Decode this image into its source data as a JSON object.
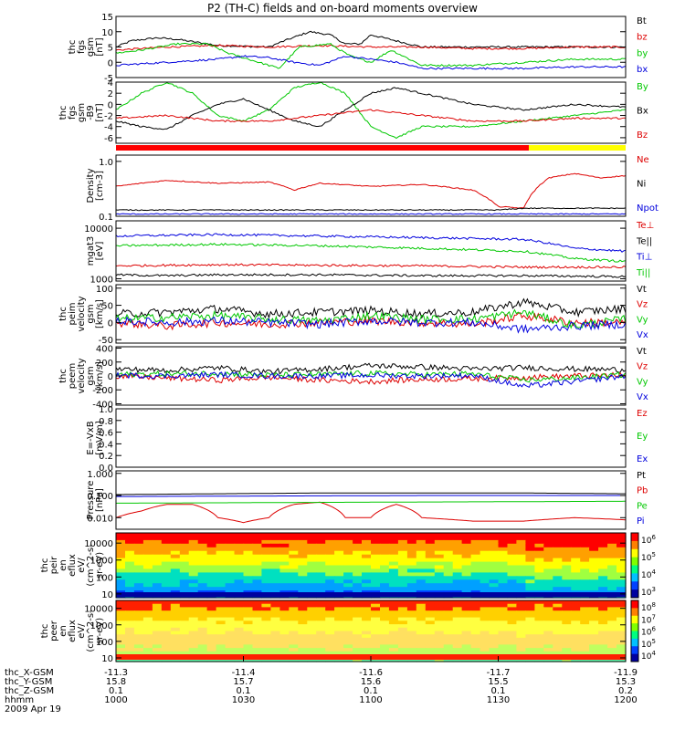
{
  "title": "P2 (TH-C) fields and on-board moments overview",
  "colors": {
    "black": "#000000",
    "red": "#dd0000",
    "green": "#00c800",
    "blue": "#0000dd",
    "yellow": "#ffff00"
  },
  "chart_data": [
    {
      "id": "fgs_gsm",
      "type": "line",
      "ylabel": [
        "thc",
        "fgs",
        "gsm",
        "[nT]"
      ],
      "ylim": [
        -5,
        15
      ],
      "yticks": [
        {
          "v": 15,
          "t": "15"
        },
        {
          "v": 10,
          "t": "10"
        },
        {
          "v": 5,
          "t": "5"
        },
        {
          "v": 0,
          "t": "0"
        },
        {
          "v": -5,
          "t": "-5"
        }
      ],
      "series": [
        {
          "name": "Bt",
          "color": "#000000",
          "x": [
            0,
            0.03,
            0.08,
            0.12,
            0.2,
            0.3,
            0.33,
            0.38,
            0.42,
            0.45,
            0.48,
            0.5,
            0.55,
            0.6,
            0.7,
            0.8,
            0.9,
            1
          ],
          "y": [
            5,
            7,
            8,
            7.5,
            5.5,
            5,
            7,
            10,
            9,
            6,
            6,
            9,
            7,
            5,
            5,
            5,
            5,
            5
          ]
        },
        {
          "name": "bz",
          "color": "#dd0000",
          "x": [
            0,
            0.1,
            0.2,
            0.3,
            0.4,
            0.5,
            0.6,
            0.7,
            0.8,
            0.9,
            1
          ],
          "y": [
            4,
            5,
            5.5,
            5,
            5.5,
            5,
            5,
            4.5,
            4.5,
            5,
            5
          ]
        },
        {
          "name": "by",
          "color": "#00c800",
          "x": [
            0,
            0.05,
            0.12,
            0.18,
            0.22,
            0.28,
            0.32,
            0.36,
            0.42,
            0.46,
            0.5,
            0.54,
            0.6,
            0.7,
            0.8,
            0.9,
            1
          ],
          "y": [
            3,
            4,
            6,
            6,
            3,
            0,
            -2,
            5,
            6,
            2,
            0,
            4,
            -1,
            -1,
            0,
            1,
            1
          ]
        },
        {
          "name": "bx",
          "color": "#0000dd",
          "x": [
            0,
            0.05,
            0.1,
            0.2,
            0.25,
            0.3,
            0.35,
            0.4,
            0.45,
            0.5,
            0.55,
            0.6,
            0.7,
            0.8,
            0.9,
            1
          ],
          "y": [
            -1,
            -0.5,
            0,
            1,
            2,
            1.5,
            0,
            -1,
            2,
            1,
            0,
            -2,
            -2,
            -2,
            -1.5,
            -1.5
          ]
        }
      ]
    },
    {
      "id": "fgs_gse",
      "type": "line",
      "ylabel": [
        "thc",
        "fgs",
        "gsm",
        "-B9",
        "[nT]"
      ],
      "ylim": [
        -7,
        4
      ],
      "yticks": [
        {
          "v": 4,
          "t": "4"
        },
        {
          "v": 2,
          "t": "2"
        },
        {
          "v": 0,
          "t": "0"
        },
        {
          "v": -2,
          "t": "-2"
        },
        {
          "v": -4,
          "t": "-4"
        },
        {
          "v": -6,
          "t": "-6"
        }
      ],
      "series": [
        {
          "name": "By",
          "color": "#00c800",
          "x": [
            0,
            0.05,
            0.1,
            0.15,
            0.2,
            0.25,
            0.3,
            0.35,
            0.4,
            0.45,
            0.5,
            0.55,
            0.6,
            0.7,
            0.8,
            0.9,
            1
          ],
          "y": [
            -1,
            2,
            4,
            2,
            -2,
            -3,
            -1,
            3,
            4,
            2,
            -4,
            -6,
            -4,
            -4,
            -3,
            -2,
            -1
          ]
        },
        {
          "name": "Bx",
          "color": "#000000",
          "x": [
            0,
            0.05,
            0.1,
            0.15,
            0.2,
            0.25,
            0.3,
            0.35,
            0.4,
            0.45,
            0.5,
            0.55,
            0.6,
            0.7,
            0.8,
            0.9,
            1
          ],
          "y": [
            -3,
            -4,
            -4.5,
            -2,
            0,
            1,
            -1,
            -3,
            -4,
            -1,
            2,
            3,
            2,
            0,
            -1,
            0,
            -0.5
          ]
        },
        {
          "name": "Bz",
          "color": "#dd0000",
          "x": [
            0,
            0.1,
            0.2,
            0.3,
            0.4,
            0.5,
            0.6,
            0.7,
            0.8,
            0.9,
            1
          ],
          "y": [
            -2.5,
            -2,
            -3,
            -3,
            -2,
            -1,
            -2,
            -3,
            -3,
            -2.5,
            -2.5
          ]
        }
      ]
    },
    {
      "id": "density",
      "type": "line",
      "log": true,
      "ylabel": [
        "Density",
        "[cm-3]"
      ],
      "ylim": [
        0.1,
        1.3
      ],
      "yticks": [
        {
          "v": 1,
          "t": "1.0"
        },
        {
          "v": 0.1,
          "t": "0.1"
        }
      ],
      "series": [
        {
          "name": "Ne",
          "color": "#dd0000",
          "x": [
            0,
            0.05,
            0.1,
            0.2,
            0.3,
            0.35,
            0.4,
            0.5,
            0.6,
            0.7,
            0.75,
            0.8,
            0.85,
            0.9,
            0.95,
            1
          ],
          "y": [
            0.35,
            0.4,
            0.45,
            0.4,
            0.42,
            0.3,
            0.4,
            0.35,
            0.38,
            0.3,
            0.15,
            0.14,
            0.5,
            0.6,
            0.5,
            0.55
          ]
        },
        {
          "name": "Ni",
          "color": "#000000",
          "x": [
            0,
            0.2,
            0.4,
            0.6,
            0.75,
            0.8,
            1
          ],
          "y": [
            0.13,
            0.13,
            0.13,
            0.13,
            0.13,
            0.14,
            0.14
          ]
        },
        {
          "name": "Npot",
          "color": "#0000dd",
          "x": [
            0,
            0.5,
            1
          ],
          "y": [
            0.11,
            0.11,
            0.11
          ]
        }
      ]
    },
    {
      "id": "temp",
      "type": "line",
      "log": true,
      "ylabel": [
        "mgat3",
        "[eV]"
      ],
      "ylim": [
        900,
        14000
      ],
      "yticks": [
        {
          "v": 10000,
          "t": "10000"
        },
        {
          "v": 1000,
          "t": "1000"
        }
      ],
      "series": [
        {
          "name": "Te⊥",
          "color": "#dd0000",
          "x": [
            0,
            0.2,
            0.4,
            0.6,
            0.8,
            1
          ],
          "y": [
            1800,
            1900,
            1850,
            1800,
            1700,
            1700
          ]
        },
        {
          "name": "Te||",
          "color": "#000000",
          "x": [
            0,
            0.1,
            0.2,
            0.4,
            0.6,
            0.8,
            1
          ],
          "y": [
            1200,
            1150,
            1200,
            1200,
            1150,
            1150,
            1100
          ]
        },
        {
          "name": "Ti⊥",
          "color": "#0000dd",
          "x": [
            0,
            0.2,
            0.4,
            0.6,
            0.8,
            0.9,
            1
          ],
          "y": [
            7000,
            7500,
            7000,
            6500,
            6000,
            4000,
            3500
          ]
        },
        {
          "name": "Ti||",
          "color": "#00c800",
          "x": [
            0,
            0.2,
            0.4,
            0.6,
            0.8,
            0.9,
            1
          ],
          "y": [
            4500,
            4800,
            4500,
            4000,
            3500,
            2500,
            2200
          ]
        }
      ]
    },
    {
      "id": "v_gsm",
      "type": "line",
      "ylabel": [
        "thc",
        "peim",
        "velocity",
        "gsm",
        "[km/s]"
      ],
      "ylim": [
        -60,
        110
      ],
      "yticks": [
        {
          "v": 100,
          "t": "100"
        },
        {
          "v": 50,
          "t": "50"
        },
        {
          "v": 0,
          "t": "0"
        },
        {
          "v": -50,
          "t": "-50"
        }
      ],
      "series": [
        {
          "name": "Vt",
          "color": "#000000",
          "x": [
            0,
            0.1,
            0.2,
            0.3,
            0.4,
            0.5,
            0.6,
            0.7,
            0.8,
            0.9,
            1
          ],
          "y": [
            25,
            30,
            40,
            25,
            30,
            35,
            25,
            30,
            60,
            30,
            40
          ]
        },
        {
          "name": "Vz",
          "color": "#dd0000",
          "x": [
            0,
            0.1,
            0.2,
            0.3,
            0.4,
            0.5,
            0.6,
            0.7,
            0.8,
            0.9,
            1
          ],
          "y": [
            0,
            -10,
            0,
            -5,
            0,
            5,
            0,
            -5,
            20,
            0,
            0
          ]
        },
        {
          "name": "Vy",
          "color": "#00c800",
          "x": [
            0,
            0.1,
            0.2,
            0.3,
            0.4,
            0.5,
            0.6,
            0.7,
            0.8,
            0.9,
            1
          ],
          "y": [
            10,
            15,
            20,
            10,
            5,
            20,
            10,
            10,
            30,
            -10,
            10
          ]
        },
        {
          "name": "Vx",
          "color": "#0000dd",
          "x": [
            0,
            0.1,
            0.2,
            0.3,
            0.4,
            0.5,
            0.6,
            0.7,
            0.8,
            0.9,
            1
          ],
          "y": [
            5,
            0,
            5,
            0,
            -5,
            5,
            0,
            0,
            -20,
            -10,
            -5
          ]
        }
      ]
    },
    {
      "id": "v_gse",
      "type": "line",
      "ylabel": [
        "thc",
        "peem",
        "velocity",
        "gsm",
        "[km/s]"
      ],
      "ylim": [
        -420,
        420
      ],
      "yticks": [
        {
          "v": 400,
          "t": "400"
        },
        {
          "v": 200,
          "t": "200"
        },
        {
          "v": 0,
          "t": "0"
        },
        {
          "v": -200,
          "t": "-200"
        },
        {
          "v": -400,
          "t": "-400"
        }
      ],
      "series": [
        {
          "name": "Vt",
          "color": "#000000",
          "x": [
            0,
            0.1,
            0.2,
            0.3,
            0.4,
            0.5,
            0.6,
            0.7,
            0.8,
            0.9,
            1
          ],
          "y": [
            100,
            80,
            120,
            60,
            100,
            150,
            130,
            100,
            120,
            100,
            90
          ]
        },
        {
          "name": "Vz",
          "color": "#dd0000",
          "x": [
            0,
            0.1,
            0.2,
            0.3,
            0.4,
            0.5,
            0.6,
            0.7,
            0.8,
            0.9,
            1
          ],
          "y": [
            0,
            -30,
            -60,
            -20,
            -60,
            -80,
            -50,
            -40,
            -20,
            0,
            10
          ]
        },
        {
          "name": "Vy",
          "color": "#00c800",
          "x": [
            0,
            0.1,
            0.2,
            0.3,
            0.4,
            0.5,
            0.6,
            0.7,
            0.8,
            0.9,
            1
          ],
          "y": [
            20,
            30,
            40,
            10,
            20,
            40,
            20,
            30,
            -60,
            -30,
            20
          ]
        },
        {
          "name": "Vx",
          "color": "#0000dd",
          "x": [
            0,
            0.1,
            0.2,
            0.3,
            0.4,
            0.5,
            0.6,
            0.7,
            0.8,
            0.9,
            1
          ],
          "y": [
            10,
            0,
            20,
            0,
            0,
            10,
            0,
            10,
            -150,
            -80,
            0
          ]
        }
      ]
    },
    {
      "id": "efield",
      "type": "line",
      "ylabel": [
        "E=-VxB",
        "[mV/m]"
      ],
      "ylim": [
        0,
        1
      ],
      "yticks": [
        {
          "v": 1,
          "t": "1.0"
        },
        {
          "v": 0.8,
          "t": "0.8"
        },
        {
          "v": 0.6,
          "t": "0.6"
        },
        {
          "v": 0.4,
          "t": "0.4"
        },
        {
          "v": 0.2,
          "t": "0.2"
        },
        {
          "v": 0,
          "t": "0.0"
        }
      ],
      "series": [
        {
          "name": "Ez",
          "color": "#dd0000",
          "x": [],
          "y": []
        },
        {
          "name": "Ey",
          "color": "#00c800",
          "x": [],
          "y": []
        },
        {
          "name": "Ex",
          "color": "#0000dd",
          "x": [],
          "y": []
        }
      ]
    },
    {
      "id": "pressure",
      "type": "line",
      "log": true,
      "ylabel": [
        "Pressure",
        "[nPa]"
      ],
      "ylim": [
        0.003,
        1.3
      ],
      "yticks": [
        {
          "v": 1,
          "t": "1.000"
        },
        {
          "v": 0.1,
          "t": "0.100"
        },
        {
          "v": 0.01,
          "t": "0.010"
        }
      ],
      "series": [
        {
          "name": "Pt",
          "color": "#000000",
          "x": [
            0,
            0.2,
            0.4,
            0.6,
            0.8,
            1
          ],
          "y": [
            0.11,
            0.12,
            0.13,
            0.13,
            0.13,
            0.12
          ]
        },
        {
          "name": "Pb",
          "color": "#dd0000",
          "x": [
            0,
            0.05,
            0.1,
            0.15,
            0.2,
            0.25,
            0.3,
            0.35,
            0.4,
            0.45,
            0.5,
            0.55,
            0.6,
            0.7,
            0.8,
            0.9,
            1
          ],
          "y": [
            0.01,
            0.02,
            0.04,
            0.04,
            0.01,
            0.006,
            0.01,
            0.04,
            0.05,
            0.01,
            0.01,
            0.04,
            0.01,
            0.007,
            0.007,
            0.01,
            0.008
          ]
        },
        {
          "name": "Pe",
          "color": "#00c800",
          "x": [
            0,
            0.5,
            1
          ],
          "y": [
            0.045,
            0.05,
            0.055
          ]
        },
        {
          "name": "Pi",
          "color": "#0000dd",
          "x": [
            0,
            0.3,
            0.6,
            1
          ],
          "y": [
            0.09,
            0.095,
            0.1,
            0.1
          ]
        }
      ]
    },
    {
      "id": "peir",
      "type": "heatmap",
      "log": true,
      "ylabel": [
        "thc",
        "peir",
        "en",
        "eflux",
        "eV/",
        "(cm^2-s-",
        "sr-eV)"
      ],
      "ylim": [
        6,
        40000
      ],
      "yticks": [
        {
          "v": 10000,
          "t": "10000"
        },
        {
          "v": 1000,
          "t": "1000"
        },
        {
          "v": 100,
          "t": "100"
        },
        {
          "v": 10,
          "t": "10"
        }
      ],
      "colorbar": [
        {
          "v": "10",
          "e": "6"
        },
        {
          "v": "10",
          "e": "5"
        },
        {
          "v": "10",
          "e": "4"
        },
        {
          "v": "10",
          "e": "3"
        }
      ]
    },
    {
      "id": "peer",
      "type": "heatmap",
      "log": true,
      "ylabel": [
        "thc",
        "peer",
        "en",
        "eflux",
        "eV/",
        "(cm^2-s-",
        "sr-eV)"
      ],
      "ylim": [
        6,
        30000
      ],
      "yticks": [
        {
          "v": 10000,
          "t": "10000"
        },
        {
          "v": 1000,
          "t": "1000"
        },
        {
          "v": 100,
          "t": "100"
        },
        {
          "v": 10,
          "t": "10"
        }
      ],
      "colorbar": [
        {
          "v": "10",
          "e": "8"
        },
        {
          "v": "10",
          "e": "7"
        },
        {
          "v": "10",
          "e": "6"
        },
        {
          "v": "10",
          "e": "5"
        },
        {
          "v": "10",
          "e": "4"
        }
      ]
    }
  ],
  "footer": {
    "rows": [
      {
        "label": "thc_X-GSM",
        "values": [
          "-11.3",
          "-11.4",
          "-11.6",
          "-11.7",
          "-11.9"
        ]
      },
      {
        "label": "thc_Y-GSM",
        "values": [
          "15.8",
          "15.7",
          "15.6",
          "15.5",
          "15.3"
        ]
      },
      {
        "label": "thc_Z-GSM",
        "values": [
          "0.1",
          "0.1",
          "0.1",
          "0.1",
          "0.2"
        ]
      },
      {
        "label": "hhmm",
        "values": [
          "1000",
          "1030",
          "1100",
          "1130",
          "1200"
        ]
      }
    ],
    "date": "2009 Apr 19"
  }
}
